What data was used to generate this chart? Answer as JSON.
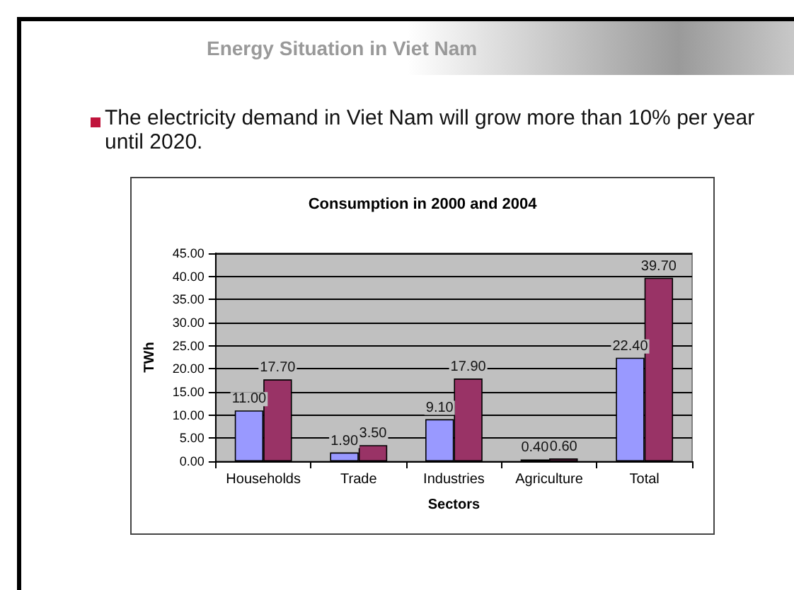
{
  "chart_data": {
    "type": "bar",
    "title": "Consumption in 2000 and 2004",
    "xlabel": "Sectors",
    "ylabel": "TWh",
    "annotations": [
      "Energy Situation in Viet Nam",
      "The electricity demand in Viet Nam will grow more than 10% per year until 2020."
    ],
    "categories": [
      "Households",
      "Trade",
      "Industries",
      "Agriculture",
      "Total"
    ],
    "series": [
      {
        "color": "#9999ff",
        "values": [
          11.0,
          1.9,
          9.1,
          0.4,
          22.4
        ],
        "value_labels": [
          "11.00",
          "1.90",
          "9.10",
          "0.40",
          "22.40"
        ]
      },
      {
        "color": "#993366",
        "values": [
          17.7,
          3.5,
          17.9,
          0.6,
          39.7
        ],
        "value_labels": [
          "17.70",
          "3.50",
          "17.90",
          "0.60",
          "39.70"
        ]
      }
    ],
    "ylim": [
      0,
      45
    ],
    "yticks": [
      {
        "value": 0,
        "label": "0.00"
      },
      {
        "value": 5,
        "label": "5.00"
      },
      {
        "value": 10,
        "label": "10.00"
      },
      {
        "value": 15,
        "label": "15.00"
      },
      {
        "value": 20,
        "label": "20.00"
      },
      {
        "value": 25,
        "label": "25.00"
      },
      {
        "value": 30,
        "label": "30.00"
      },
      {
        "value": 35,
        "label": "35.00"
      },
      {
        "value": 40,
        "label": "40.00"
      },
      {
        "value": 45,
        "label": "45.00"
      }
    ],
    "grid": "y"
  }
}
